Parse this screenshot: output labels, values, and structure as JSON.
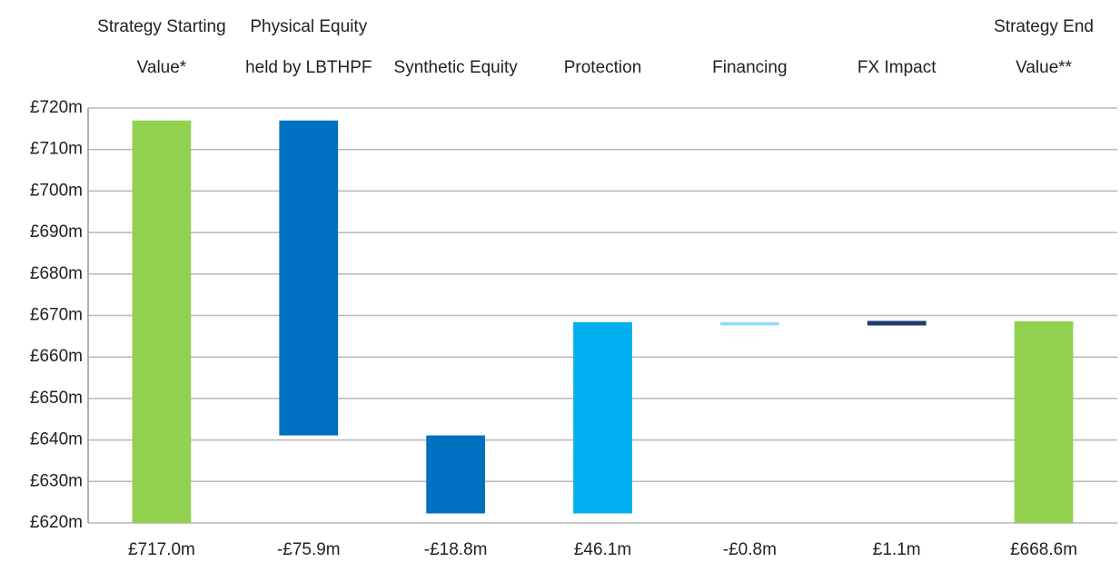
{
  "chart_data": {
    "type": "waterfall",
    "categories": [
      "Strategy Starting\nValue*",
      "Physical Equity\nheld by LBTHPF",
      "Synthetic Equity",
      "Protection",
      "Financing",
      "FX Impact",
      "Strategy End\nValue**"
    ],
    "values": [
      717.0,
      -75.9,
      -18.8,
      46.1,
      -0.8,
      1.1,
      668.6
    ],
    "value_labels": [
      "£717.0m",
      "-£75.9m",
      "-£18.8m",
      "£46.1m",
      "-£0.8m",
      "£1.1m",
      "£668.6m"
    ],
    "is_total": [
      true,
      false,
      false,
      false,
      false,
      false,
      true
    ],
    "colors": [
      "#92d050",
      "#0070c0",
      "#0070c0",
      "#00b0f0",
      "#8fdcf7",
      "#1f3b73",
      "#92d050"
    ],
    "ylim": [
      620,
      720
    ],
    "yticks": [
      {
        "value": 620,
        "label": "£620m"
      },
      {
        "value": 630,
        "label": "£630m"
      },
      {
        "value": 640,
        "label": "£640m"
      },
      {
        "value": 650,
        "label": "£650m"
      },
      {
        "value": 660,
        "label": "£660m"
      },
      {
        "value": 670,
        "label": "£670m"
      },
      {
        "value": 680,
        "label": "£680m"
      },
      {
        "value": 690,
        "label": "£690m"
      },
      {
        "value": 700,
        "label": "£700m"
      },
      {
        "value": 710,
        "label": "£710m"
      },
      {
        "value": 720,
        "label": "£720m"
      }
    ],
    "grid": true
  }
}
